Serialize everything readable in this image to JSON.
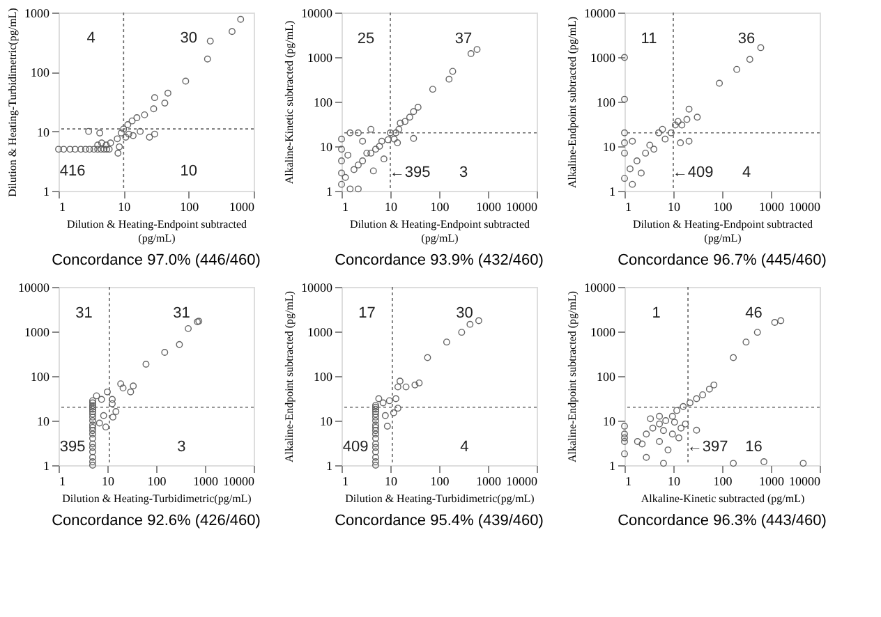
{
  "chart_data": [
    {
      "type": "scatter",
      "title": "Concordance 97.0% (446/460)",
      "xlabel": "Dilution & Heating-Endpoint subtracted\n(pg/mL)",
      "ylabel": "Dilution & Heating-Turbidimetric(pg/mL)",
      "xlim": [
        1,
        1000
      ],
      "ylim": [
        1,
        1000
      ],
      "xticks": [
        1,
        10,
        100,
        1000
      ],
      "yticks": [
        1,
        10,
        100,
        1000
      ],
      "log": "xy",
      "grid": false,
      "marker": "circle",
      "series": [
        {
          "color": "#555555",
          "x": [
            630,
            465,
            215,
            195,
            90,
            48,
            43,
            30,
            29,
            21,
            25,
            16,
            13.5,
            11.6,
            10,
            9.2,
            10.8,
            8,
            6.3,
            5.4,
            4.3,
            2.9,
            8.6,
            8.2,
            4,
            4.6,
            1,
            1.2,
            1.5,
            1.8,
            2.2,
            2.6,
            3,
            3.5,
            4,
            4.5,
            5,
            5.5,
            6,
            12,
            14,
            18,
            30
          ],
          "values": [
            770,
            480,
            330,
            165,
            70,
            44,
            30,
            37,
            24,
            19,
            8,
            17,
            15,
            13,
            11,
            9.4,
            8,
            7.5,
            6.4,
            5.9,
            9.4,
            10,
            5.5,
            4.3,
            5.9,
            6.4,
            5,
            5,
            5,
            5,
            5,
            5,
            5,
            5,
            5,
            5,
            5,
            5,
            5,
            9,
            8.5,
            10,
            9
          ]
        }
      ],
      "ref_lines": [
        {
          "axis": "x",
          "value": 10,
          "line_style": "dotted"
        },
        {
          "axis": "y",
          "value": 11,
          "line_style": "dotted"
        }
      ],
      "annotations": [
        "4",
        "30",
        "416",
        "10"
      ]
    },
    {
      "type": "scatter",
      "title": "Concordance 93.9% (432/460)",
      "xlabel": "Dilution & Heating-Endpoint subtracted\n(pg/mL)",
      "ylabel": "Alkaline-Kinetic subtracted (pg/mL)",
      "xlim": [
        1,
        10000
      ],
      "ylim": [
        1,
        10000
      ],
      "xticks": [
        1,
        10,
        100,
        1000,
        10000
      ],
      "yticks": [
        1,
        10,
        100,
        1000,
        10000
      ],
      "log": "xy",
      "grid": false,
      "marker": "circle",
      "series": [
        {
          "color": "#555555",
          "x": [
            600,
            450,
            190,
            160,
            74,
            37,
            30,
            25,
            20,
            15,
            10,
            9,
            6,
            4,
            2.7,
            1.8,
            1.2,
            1,
            1,
            1,
            1,
            1.5,
            2.2,
            4.5,
            1.5,
            2.2,
            2.7,
            4,
            3.3,
            6.7,
            7.4,
            2.2,
            1.35,
            5,
            13,
            12,
            16,
            1,
            14,
            30
          ],
          "values": [
            1480,
            1200,
            480,
            320,
            190,
            75,
            60,
            45,
            36,
            24,
            20,
            14,
            10,
            7,
            4.7,
            3,
            2,
            4.7,
            8.6,
            14.5,
            1.4,
            1.1,
            1.1,
            2.8,
            20,
            20,
            13,
            24,
            7,
            13,
            5.2,
            3.8,
            6.3,
            8.6,
            20,
            14.5,
            33,
            2.5,
            12,
            15
          ]
        }
      ],
      "ref_lines": [
        {
          "axis": "x",
          "value": 10,
          "line_style": "dotted"
        },
        {
          "axis": "y",
          "value": 20,
          "line_style": "dotted"
        }
      ],
      "annotations": [
        "25",
        "37",
        "←395",
        "3"
      ]
    },
    {
      "type": "scatter",
      "title": "Concordance 96.7% (445/460)",
      "xlabel": "Dilution & Heating-Endpoint subtracted\n(pg/mL)",
      "ylabel": "Alkaline-Endpoint subtracted (pg/mL)",
      "xlim": [
        1,
        10000
      ],
      "ylim": [
        1,
        10000
      ],
      "xticks": [
        1,
        10,
        100,
        1000,
        10000
      ],
      "yticks": [
        1,
        10,
        100,
        1000,
        10000
      ],
      "log": "xy",
      "grid": false,
      "marker": "circle",
      "series": [
        {
          "color": "#555555",
          "x": [
            620,
            370,
            200,
            88,
            31,
            19,
            21,
            11,
            9,
            6.8,
            4,
            2.7,
            1.8,
            1.3,
            1,
            1,
            1,
            1,
            1,
            1,
            1.45,
            2.2,
            3.3,
            5,
            6,
            1.45,
            12.5,
            15,
            21,
            14
          ],
          "values": [
            1630,
            890,
            530,
            260,
            45,
            40,
            68,
            30,
            20,
            14.5,
            8.6,
            7,
            4.7,
            3.1,
            7,
            12,
            20,
            1.9,
            980,
            113,
            1.4,
            2.5,
            10.6,
            20,
            24,
            13,
            36,
            30,
            13,
            12
          ]
        }
      ],
      "ref_lines": [
        {
          "axis": "x",
          "value": 10,
          "line_style": "dotted"
        },
        {
          "axis": "y",
          "value": 20,
          "line_style": "dotted"
        }
      ],
      "annotations": [
        "11",
        "36",
        "←409",
        "4"
      ]
    },
    {
      "type": "scatter",
      "title": "Concordance 92.6% (426/460)",
      "xlabel": "Dilution & Heating-Turbidimetric(pg/mL)",
      "xlim": [
        1,
        10000
      ],
      "ylim": [
        1,
        10000
      ],
      "xticks": [
        1,
        10,
        100,
        1000,
        10000
      ],
      "yticks": [
        1,
        10,
        100,
        1000,
        10000
      ],
      "log": "xy",
      "grid": false,
      "marker": "circle",
      "series": [
        {
          "color": "#555555",
          "x": [
            5,
            5,
            5,
            5,
            5,
            5,
            5,
            5,
            5,
            5,
            5,
            5,
            5,
            5,
            5,
            5,
            5,
            5,
            5,
            5,
            6,
            7.6,
            10,
            12.6,
            15,
            8.4,
            9.3,
            6.9,
            18.8,
            21,
            30,
            34,
            62,
            150,
            300,
            455,
            750,
            700,
            12.6,
            13
          ],
          "values": [
            1,
            1.2,
            1.5,
            2,
            2.5,
            3,
            4,
            5,
            6,
            7,
            8,
            10,
            12,
            14,
            16,
            18,
            20,
            22,
            25,
            28,
            36,
            30,
            44,
            30,
            16,
            13,
            7.2,
            8.8,
            67,
            54,
            44,
            60,
            184,
            340,
            510,
            1160,
            1700,
            1650,
            24,
            12
          ]
        }
      ],
      "ref_lines": [
        {
          "axis": "x",
          "value": 11,
          "line_style": "dotted"
        },
        {
          "axis": "y",
          "value": 20,
          "line_style": "dotted"
        }
      ],
      "annotations": [
        "31",
        "31",
        "395",
        "3"
      ]
    },
    {
      "type": "scatter",
      "title": "Concordance 95.4% (439/460)",
      "xlabel": "Dilution & Heating-Turbidimetric(pg/mL)",
      "ylabel": "Alkaline-Endpoint subtracted (pg/mL)",
      "xlim": [
        1,
        10000
      ],
      "ylim": [
        1,
        10000
      ],
      "xticks": [
        1,
        10,
        100,
        1000,
        10000
      ],
      "yticks": [
        1,
        10,
        100,
        1000,
        10000
      ],
      "log": "xy",
      "grid": false,
      "marker": "circle",
      "series": [
        {
          "color": "#555555",
          "x": [
            5,
            5,
            5,
            5,
            5,
            5,
            5,
            5,
            5,
            5,
            5,
            5,
            5,
            5,
            5,
            5,
            5,
            5,
            5.8,
            7.1,
            9.6,
            13,
            14.3,
            15.8,
            21,
            32,
            39,
            58,
            143,
            290,
            430,
            650,
            8.7,
            7.9,
            11.7,
            14.3
          ],
          "values": [
            1,
            1.2,
            1.5,
            2,
            2.5,
            3,
            4,
            5,
            6,
            7,
            8,
            10,
            12,
            14,
            16,
            18,
            20,
            22,
            31,
            25,
            28,
            31,
            57,
            77,
            57,
            63,
            70,
            260,
            580,
            960,
            1450,
            1750,
            7.5,
            13,
            15,
            19
          ]
        }
      ],
      "ref_lines": [
        {
          "axis": "x",
          "value": 11,
          "line_style": "dotted"
        },
        {
          "axis": "y",
          "value": 20,
          "line_style": "dotted"
        }
      ],
      "annotations": [
        "17",
        "30",
        "409",
        "4"
      ]
    },
    {
      "type": "scatter",
      "title": "Concordance 96.3% (443/460)",
      "xlabel": "Alkaline-Kinetic subtracted (pg/mL)",
      "ylabel": "Alkaline-Endpoint subtracted (pg/mL)",
      "xlim": [
        1,
        10000
      ],
      "ylim": [
        1,
        10000
      ],
      "xticks": [
        1,
        10,
        100,
        1000,
        10000
      ],
      "yticks": [
        1,
        10,
        100,
        1000,
        10000
      ],
      "log": "xy",
      "grid": false,
      "marker": "circle",
      "series": [
        {
          "color": "#555555",
          "x": [
            1,
            1,
            1,
            1,
            1,
            1.85,
            2.8,
            3.8,
            5.2,
            7,
            9.6,
            11.8,
            16,
            22,
            30,
            40,
            55,
            68,
            6.3,
            3.4,
            2.3,
            5.2,
            9.6,
            13,
            7.8,
            2.8,
            6.3,
            14.4,
            17.7,
            30,
            720,
            4600,
            170,
            5.2,
            10.6,
            170,
            310,
            530,
            1200,
            1600
          ],
          "values": [
            5,
            4.1,
            3.4,
            7.5,
            1.8,
            3.4,
            5,
            6.8,
            8.4,
            10,
            12.5,
            16.9,
            20.7,
            25,
            31,
            38,
            51,
            63,
            6,
            11,
            3,
            3.4,
            5,
            4.1,
            2.2,
            1.5,
            1.1,
            6.8,
            8.4,
            6.1,
            1.2,
            1.1,
            1.1,
            12.5,
            9.2,
            260,
            580,
            960,
            1600,
            1750
          ]
        }
      ],
      "ref_lines": [
        {
          "axis": "x",
          "value": 20,
          "line_style": "dotted"
        },
        {
          "axis": "y",
          "value": 20,
          "line_style": "dotted"
        }
      ],
      "annotations": [
        "1",
        "46",
        "←397",
        "16"
      ]
    }
  ]
}
